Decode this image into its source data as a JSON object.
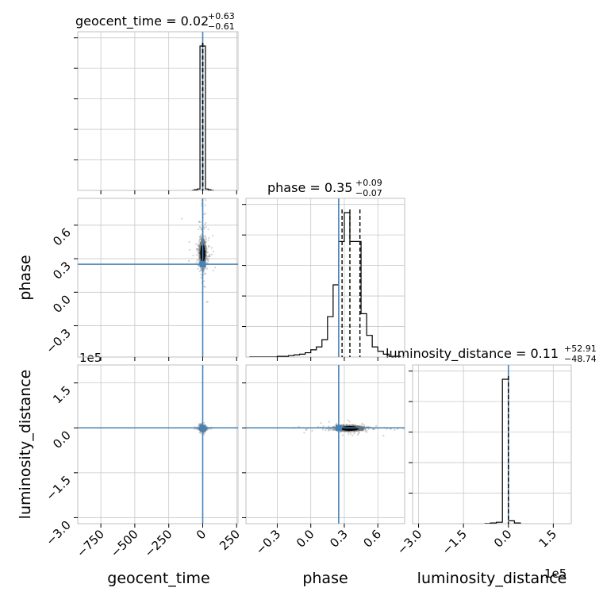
{
  "chart_data": {
    "type": "corner",
    "colors": {
      "truth": "#4682b4",
      "hist": "#000000",
      "grid": "#c8c8c8",
      "samples": "#7f7f7f"
    },
    "truths": {
      "geocent_time": 0,
      "phase": 0.25,
      "luminosity_distance": 0
    },
    "parameters": [
      {
        "key": "geocent_time",
        "label": "geocent_time",
        "title": {
          "prefix": "geocent_time = 0.02",
          "upper": "+0.63",
          "lower": "−0.61"
        },
        "range": [
          -920,
          260
        ],
        "ticks": [
          -750,
          -500,
          -250,
          0,
          250
        ],
        "tick_labels": [
          "−750",
          "−500",
          "−250",
          "0",
          "250"
        ],
        "quantiles": [
          -0.59,
          0.02,
          0.65
        ],
        "hist": {
          "edges": [
            -80,
            -60,
            -40,
            -20,
            0,
            20,
            40,
            60,
            80
          ],
          "heights": [
            0.0,
            0.005,
            0.01,
            1.0,
            1.0,
            0.01,
            0.005,
            0.0
          ]
        }
      },
      {
        "key": "phase",
        "label": "phase",
        "title": {
          "prefix": "phase = 0.35",
          "upper": "+0.09",
          "lower": "−0.07"
        },
        "range": [
          -0.58,
          0.84
        ],
        "ticks": [
          -0.3,
          0.0,
          0.3,
          0.6
        ],
        "tick_labels": [
          "−0.3",
          "0.0",
          "0.3",
          "0.6"
        ],
        "quantiles": [
          0.28,
          0.35,
          0.44
        ],
        "hist": {
          "edges": [
            -0.55,
            -0.3,
            -0.2,
            -0.15,
            -0.1,
            -0.05,
            0.0,
            0.05,
            0.1,
            0.15,
            0.2,
            0.25,
            0.3,
            0.35,
            0.45,
            0.5,
            0.55,
            0.6,
            0.65,
            0.7,
            0.8
          ],
          "heights": [
            0.0,
            0.005,
            0.01,
            0.015,
            0.02,
            0.03,
            0.05,
            0.07,
            0.12,
            0.28,
            0.5,
            0.8,
            1.0,
            0.8,
            0.3,
            0.15,
            0.07,
            0.04,
            0.02,
            0.005
          ]
        }
      },
      {
        "key": "luminosity_distance",
        "label": "luminosity_distance",
        "title": {
          "prefix": "luminosity_distance = 0.11",
          "upper": "+52.91",
          "lower": "−48.74"
        },
        "range": [
          -320000,
          210000
        ],
        "ticks": [
          -300000,
          -150000,
          0,
          150000
        ],
        "tick_labels": [
          "−3.0",
          "−1.5",
          "0.0",
          "1.5"
        ],
        "offset_text": "1e5",
        "quantiles": [
          -48.63,
          0.11,
          53.02
        ],
        "hist": {
          "edges": [
            -80000,
            -60000,
            -40000,
            -20000,
            0,
            20000,
            40000
          ],
          "heights": [
            0.0,
            0.005,
            0.01,
            1.0,
            0.02,
            0.005
          ]
        }
      }
    ],
    "scatter": [
      {
        "x": "geocent_time",
        "y": "phase",
        "center": [
          0,
          0.35
        ],
        "spread": [
          15,
          0.08
        ]
      },
      {
        "x": "geocent_time",
        "y": "luminosity_distance",
        "center": [
          0,
          -2000
        ],
        "spread": [
          10,
          3000
        ]
      },
      {
        "x": "phase",
        "y": "luminosity_distance",
        "center": [
          0.35,
          -2000
        ],
        "spread": [
          0.08,
          4000
        ]
      }
    ],
    "grid": true,
    "legend": "none"
  }
}
